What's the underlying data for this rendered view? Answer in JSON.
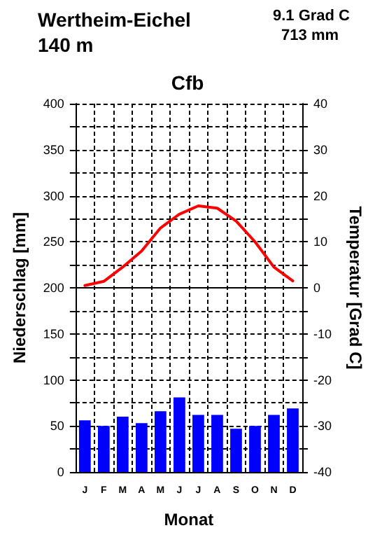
{
  "chart_data": {
    "type": "bar",
    "title": "Wertheim-Eichel",
    "subtitle": "140 m",
    "annotations": [
      "9.1 Grad C",
      "713 mm",
      "Cfb"
    ],
    "xlabel": "Monat",
    "ylabel": "Niederschlag [mm]",
    "y2label": "Temperatur [Grad C]",
    "categories": [
      "J",
      "F",
      "M",
      "A",
      "M",
      "J",
      "J",
      "A",
      "S",
      "O",
      "N",
      "D"
    ],
    "series": [
      {
        "color": "#0000ff",
        "values": [
          56,
          50,
          60,
          53,
          66,
          81,
          62,
          62,
          47,
          50,
          62,
          69
        ]
      },
      {
        "type": "line",
        "axis": "y2",
        "color": "#ff0000",
        "values": [
          0.5,
          1.4,
          4.5,
          8,
          13,
          16,
          17.8,
          17.3,
          14.5,
          10,
          4.5,
          1.5
        ]
      }
    ],
    "ylim": [
      0,
      400
    ],
    "yticks": [
      0,
      {
        "value": 25,
        "label": null
      },
      50,
      {
        "value": 75,
        "label": null
      },
      100,
      {
        "value": 125,
        "label": null
      },
      150,
      {
        "value": 175,
        "label": null
      },
      200,
      {
        "value": 225,
        "label": null
      },
      250,
      {
        "value": 275,
        "label": null
      },
      300,
      {
        "value": 325,
        "label": null
      },
      350,
      {
        "value": 375,
        "label": null
      },
      400
    ],
    "y2lim": [
      -40,
      40
    ],
    "y2ticks": [
      -40,
      {
        "value": -35,
        "label": null
      },
      -30,
      {
        "value": -25,
        "label": null
      },
      -20,
      {
        "value": -15,
        "label": null
      },
      -10,
      {
        "value": -5,
        "label": null
      },
      0,
      {
        "value": 5,
        "label": null
      },
      10,
      {
        "value": 15,
        "label": null
      },
      20,
      {
        "value": 25,
        "label": null
      },
      30,
      {
        "value": 35,
        "label": null
      },
      40
    ],
    "ref_lines": [
      {
        "axis": "y2",
        "value": 0,
        "color": "#000000",
        "line_style": "solid"
      }
    ],
    "grid": true,
    "marker": "none",
    "line_style": "solid"
  }
}
